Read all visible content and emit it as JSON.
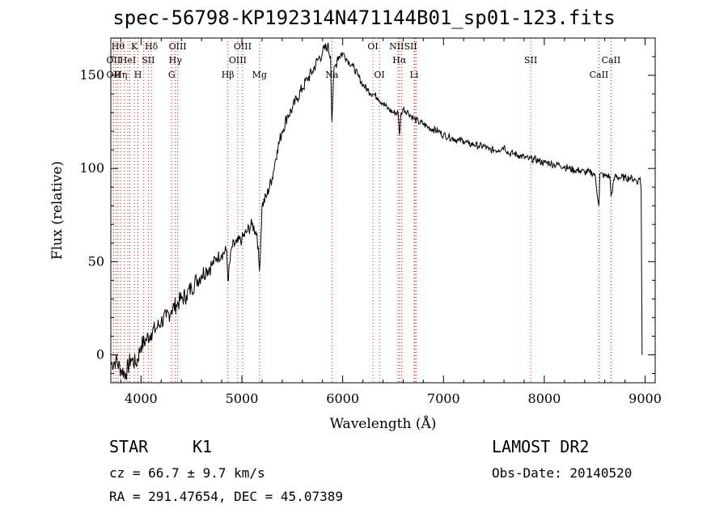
{
  "header": {
    "title": "spec-56798-KP192314N471144B01_sp01-123.fits"
  },
  "info": {
    "object_type": "STAR",
    "subclass": "K1",
    "survey": "LAMOST DR2",
    "cz": "cz = 66.7 ± 9.7 km/s",
    "obs_date": "Obs-Date: 20140520",
    "ra_dec": "RA = 291.47654, DEC =  45.07389"
  },
  "chart_data": {
    "type": "line",
    "title": "spec-56798-KP192314N471144B01_sp01-123.fits",
    "xlabel": "Wavelength (Å)",
    "ylabel": "Flux (relative)",
    "xlim": [
      3700,
      9100
    ],
    "ylim": [
      -15,
      170
    ],
    "x_ticks": [
      4000,
      5000,
      6000,
      7000,
      8000,
      9000
    ],
    "y_ticks": [
      0,
      50,
      100,
      150
    ],
    "grid": false,
    "line_color": "#000000",
    "marker_color": "#ff0000",
    "series": [
      {
        "x": [
          3700,
          3750,
          3800,
          3850,
          3900,
          3950,
          4000,
          4050,
          4100,
          4150,
          4200,
          4250,
          4300,
          4350,
          4400,
          4450,
          4500,
          4550,
          4600,
          4650,
          4700,
          4750,
          4800,
          4850,
          4861,
          4900,
          4950,
          5000,
          5050,
          5100,
          5150,
          5175,
          5200,
          5250,
          5300,
          5350,
          5400,
          5450,
          5500,
          5550,
          5600,
          5650,
          5700,
          5750,
          5800,
          5850,
          5880,
          5893,
          5910,
          5950,
          6000,
          6050,
          6100,
          6150,
          6200,
          6250,
          6300,
          6350,
          6400,
          6450,
          6500,
          6550,
          6563,
          6580,
          6600,
          6650,
          6700,
          6750,
          6800,
          6850,
          6900,
          6950,
          7000,
          7050,
          7100,
          7150,
          7200,
          7250,
          7300,
          7350,
          7400,
          7450,
          7500,
          7550,
          7600,
          7650,
          7700,
          7750,
          7800,
          7850,
          7900,
          7950,
          8000,
          8050,
          8100,
          8150,
          8200,
          8250,
          8300,
          8350,
          8400,
          8450,
          8500,
          8542,
          8550,
          8600,
          8650,
          8662,
          8700,
          8750,
          8800,
          8850,
          8900,
          8930,
          8950,
          8960,
          8970
        ],
        "y": [
          -5,
          -3,
          -8,
          -10,
          -2,
          -5,
          5,
          8,
          12,
          14,
          18,
          20,
          24,
          27,
          30,
          32,
          36,
          40,
          43,
          46,
          48,
          52,
          54,
          56,
          40,
          58,
          60,
          62,
          66,
          70,
          65,
          45,
          80,
          86,
          95,
          110,
          120,
          128,
          132,
          138,
          143,
          148,
          152,
          158,
          162,
          166,
          160,
          125,
          150,
          160,
          162,
          158,
          155,
          150,
          145,
          142,
          140,
          138,
          135,
          132,
          130,
          130,
          118,
          130,
          132,
          130,
          127,
          125,
          124,
          122,
          121,
          120,
          118,
          117,
          116,
          115,
          115,
          113,
          113,
          112,
          112,
          110,
          110,
          110,
          112,
          108,
          108,
          107,
          106,
          105,
          105,
          104,
          103,
          103,
          102,
          102,
          101,
          100,
          99,
          99,
          98,
          98,
          97,
          80,
          97,
          96,
          96,
          85,
          96,
          95,
          95,
          95,
          94,
          93,
          95,
          90,
          0
        ]
      }
    ],
    "lines": [
      {
        "wl": 3727,
        "labels": [
          "OII"
        ]
      },
      {
        "wl": 3750,
        "labels": [
          "OII"
        ]
      },
      {
        "wl": 3771,
        "labels": [
          "Hθ"
        ]
      },
      {
        "wl": 3798,
        "labels": [
          "Hη"
        ]
      },
      {
        "wl": 3835,
        "labels": [
          "Hη"
        ]
      },
      {
        "wl": 3869,
        "labels": [
          "HeI"
        ]
      },
      {
        "wl": 3889,
        "labels": [
          "HeI"
        ]
      },
      {
        "wl": 3934,
        "labels": [
          "K"
        ]
      },
      {
        "wl": 3969,
        "labels": [
          "H"
        ]
      },
      {
        "wl": 4026,
        "labels": [
          "SII"
        ]
      },
      {
        "wl": 4072,
        "labels": [
          "SII"
        ]
      },
      {
        "wl": 4102,
        "labels": [
          "Hδ"
        ]
      },
      {
        "wl": 4304,
        "labels": [
          "G"
        ]
      },
      {
        "wl": 4340,
        "labels": [
          "Hγ"
        ]
      },
      {
        "wl": 4363,
        "labels": [
          "OIII"
        ]
      },
      {
        "wl": 4861,
        "labels": [
          "Hβ"
        ]
      },
      {
        "wl": 4959,
        "labels": [
          "OIII"
        ]
      },
      {
        "wl": 5007,
        "labels": [
          "OIII"
        ]
      },
      {
        "wl": 5175,
        "labels": [
          "Mg"
        ]
      },
      {
        "wl": 5893,
        "labels": [
          "Na"
        ]
      },
      {
        "wl": 6300,
        "labels": [
          "OI"
        ]
      },
      {
        "wl": 6364,
        "labels": [
          "OI"
        ]
      },
      {
        "wl": 6548,
        "labels": [
          "NII"
        ]
      },
      {
        "wl": 6563,
        "labels": [
          "Hα"
        ]
      },
      {
        "wl": 6583,
        "labels": [
          "NII"
        ]
      },
      {
        "wl": 6708,
        "labels": [
          "Li"
        ]
      },
      {
        "wl": 6716,
        "labels": [
          "SII"
        ]
      },
      {
        "wl": 6731,
        "labels": [
          "SII"
        ]
      },
      {
        "wl": 7865,
        "labels": [
          "SII"
        ]
      },
      {
        "wl": 8542,
        "labels": [
          "CaII"
        ]
      },
      {
        "wl": 8662,
        "labels": [
          "CaII"
        ]
      }
    ],
    "line_label_rows": [
      {
        "row": 0,
        "items": [
          [
            "Hθ",
            3771
          ],
          [
            "K",
            3934
          ],
          [
            "Hδ",
            4102
          ],
          [
            "OIII",
            4363
          ],
          [
            "OIII",
            5007
          ],
          [
            "OI",
            6300
          ],
          [
            "NIISII",
            6600
          ]
        ]
      },
      {
        "row": 1,
        "items": [
          [
            "OII",
            3727
          ],
          [
            "HeI",
            3869
          ],
          [
            "SII",
            4072
          ],
          [
            "Hγ",
            4340
          ],
          [
            "OIII",
            4959
          ],
          [
            "Hα",
            6563
          ],
          [
            "SII",
            7865
          ],
          [
            "CaII",
            8662
          ]
        ]
      },
      {
        "row": 2,
        "items": [
          [
            "OII",
            3727
          ],
          [
            "Hη",
            3798
          ],
          [
            "H",
            3969
          ],
          [
            "G",
            4304
          ],
          [
            "Hβ",
            4861
          ],
          [
            "Mg",
            5175
          ],
          [
            "Na",
            5893
          ],
          [
            "OI",
            6364
          ],
          [
            "Li",
            6708
          ],
          [
            "CaII",
            8542
          ]
        ]
      }
    ]
  }
}
